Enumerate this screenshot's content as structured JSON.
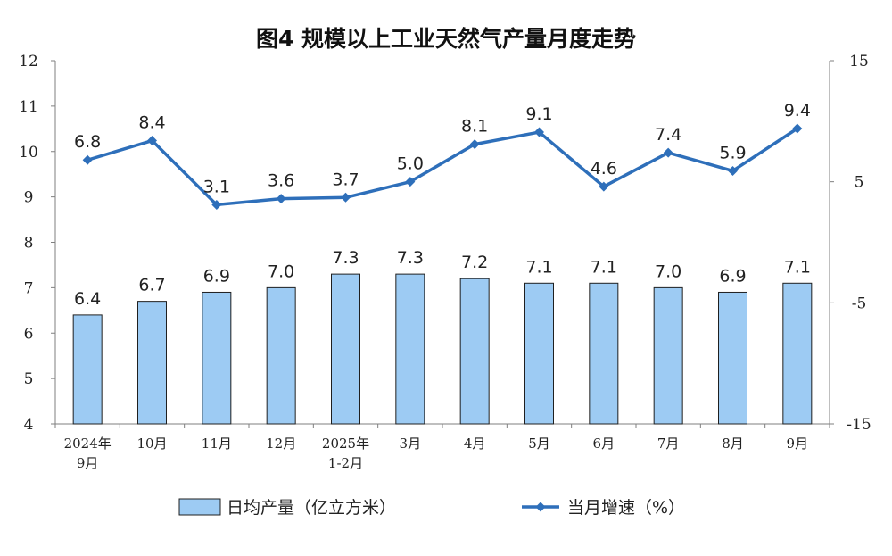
{
  "chart_data": {
    "type": "bar+line",
    "title": "图4  规模以上工业天然气产量月度走势",
    "categories": [
      [
        "2024年",
        "9月"
      ],
      [
        "10月"
      ],
      [
        "11月"
      ],
      [
        "12月"
      ],
      [
        "2025年",
        "1-2月"
      ],
      [
        "3月"
      ],
      [
        "4月"
      ],
      [
        "5月"
      ],
      [
        "6月"
      ],
      [
        "7月"
      ],
      [
        "8月"
      ],
      [
        "9月"
      ]
    ],
    "series": [
      {
        "name": "日均产量（亿立方米）",
        "type": "bar",
        "axis": "left",
        "values": [
          6.4,
          6.7,
          6.9,
          7.0,
          7.3,
          7.3,
          7.2,
          7.1,
          7.1,
          7.0,
          6.9,
          7.1
        ],
        "labels": [
          "6.4",
          "6.7",
          "6.9",
          "7.0",
          "7.3",
          "7.3",
          "7.2",
          "7.1",
          "7.1",
          "7.0",
          "6.9",
          "7.1"
        ]
      },
      {
        "name": "当月增速（%）",
        "type": "line",
        "axis": "right",
        "values": [
          6.8,
          8.4,
          3.1,
          3.6,
          3.7,
          5.0,
          8.1,
          9.1,
          4.6,
          7.4,
          5.9,
          9.4
        ],
        "labels": [
          "6.8",
          "8.4",
          "3.1",
          "3.6",
          "3.7",
          "5.0",
          "8.1",
          "9.1",
          "4.6",
          "7.4",
          "5.9",
          "9.4"
        ]
      }
    ],
    "left_axis": {
      "ylim": [
        4,
        12
      ],
      "ticks": [
        "4",
        "5",
        "6",
        "7",
        "8",
        "9",
        "10",
        "11",
        "12"
      ]
    },
    "right_axis": {
      "ylim": [
        -15,
        15
      ],
      "ticks": [
        "-15",
        "-5",
        "5",
        "15"
      ]
    },
    "grid": false,
    "legend_position": "bottom",
    "colors": {
      "bar_fill": "#9DCBF3",
      "bar_stroke": "#1f1f1f",
      "line": "#2E6FBA",
      "axis": "#7f7f7f",
      "text": "#222222"
    }
  }
}
